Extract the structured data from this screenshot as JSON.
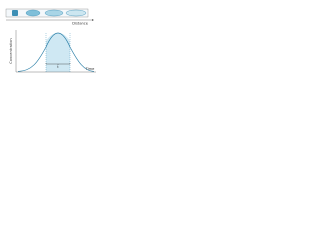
{
  "top_panel": {
    "axis_label": "Distance"
  },
  "bottom_panel": {
    "y_axis_label": "Concentration",
    "x_axis_label": "Time",
    "interval_label": "t"
  }
}
